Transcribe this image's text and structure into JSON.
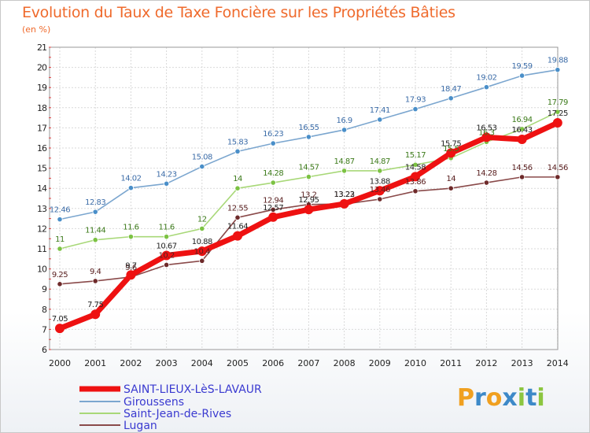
{
  "title": "Evolution du Taux de Taxe Foncière sur les Propriétés Bâties",
  "subtitle": "(en %)",
  "logo": {
    "letters": [
      "P",
      "r",
      "o",
      "x",
      "i",
      "t",
      "i"
    ],
    "colors": [
      "#f0a020",
      "#3d89c8",
      "#f0a020",
      "#3d89c8",
      "#8cc640",
      "#3d89c8",
      "#8cc640"
    ]
  },
  "chart_data": {
    "type": "line",
    "x": [
      2000,
      2001,
      2002,
      2003,
      2004,
      2005,
      2006,
      2007,
      2008,
      2009,
      2010,
      2011,
      2012,
      2013,
      2014
    ],
    "ylim": [
      6,
      21
    ],
    "yticks": [
      6,
      7,
      8,
      9,
      10,
      11,
      12,
      13,
      14,
      15,
      16,
      17,
      18,
      19,
      20,
      21
    ],
    "grid": true,
    "legend_placement": "bottom-left",
    "series": [
      {
        "name": "Giroussens",
        "color": "#7ba6cf",
        "marker": "#4a8fc9",
        "values": [
          12.46,
          12.83,
          14.02,
          14.23,
          15.08,
          15.83,
          16.23,
          16.55,
          16.9,
          17.41,
          17.93,
          18.47,
          19.02,
          19.59,
          19.88
        ],
        "labels": [
          "12.46",
          "12.83",
          "14.02",
          "14.23",
          "15.08",
          "15.83",
          "16.23",
          "16.55",
          "16.9",
          "17.41",
          "17.93",
          "18.47",
          "19.02",
          "19.59",
          "19.88"
        ],
        "label_color": "#3d6da8"
      },
      {
        "name": "Saint-Jean-de-Rives",
        "color": "#a8d878",
        "marker": "#7cc243",
        "values": [
          11,
          11.44,
          11.6,
          11.6,
          12,
          14,
          14.28,
          14.57,
          14.87,
          14.87,
          15.17,
          15.5,
          16.3,
          16.94,
          17.79
        ],
        "labels": [
          "11",
          "11.44",
          "11.6",
          "11.6",
          "12",
          "14",
          "14.28",
          "14.57",
          "14.87",
          "14.87",
          "15.17",
          "15.5",
          "16.3",
          "16.94",
          "17.79"
        ],
        "label_color": "#3c7a1a"
      },
      {
        "name": "Lugan",
        "color": "#8a4a4a",
        "marker": "#6e2a2a",
        "values": [
          9.25,
          9.4,
          9.6,
          10.2,
          10.4,
          12.55,
          12.94,
          13.2,
          13.22,
          13.46,
          13.86,
          14,
          14.28,
          14.56,
          14.56
        ],
        "labels": [
          "9.25",
          "9.4",
          "9.6",
          "10.2",
          "10.4",
          "12.55",
          "12.94",
          "13.2",
          "13.22",
          "13.46",
          "13.86",
          "14",
          "14.28",
          "14.56",
          "14.56"
        ],
        "label_color": "#5a2020"
      },
      {
        "name": "SAINT-LIEUX-LèS-LAVAUR",
        "color": "#ee1111",
        "marker": "#ee1111",
        "values": [
          7.05,
          7.75,
          9.7,
          10.67,
          10.88,
          11.64,
          12.57,
          12.95,
          13.23,
          13.88,
          14.58,
          15.75,
          16.53,
          16.43,
          17.25
        ],
        "labels": [
          "7.05",
          "7.75",
          "9.7",
          "10.67",
          "10.88",
          "11.64",
          "12.57",
          "12.95",
          "13.23",
          "13.88",
          "14.58",
          "15.75",
          "16.53",
          "16.43",
          "17.25"
        ],
        "label_color": "#222222"
      }
    ],
    "legend": [
      "SAINT-LIEUX-LèS-LAVAUR",
      "Giroussens",
      "Saint-Jean-de-Rives",
      "Lugan"
    ]
  }
}
